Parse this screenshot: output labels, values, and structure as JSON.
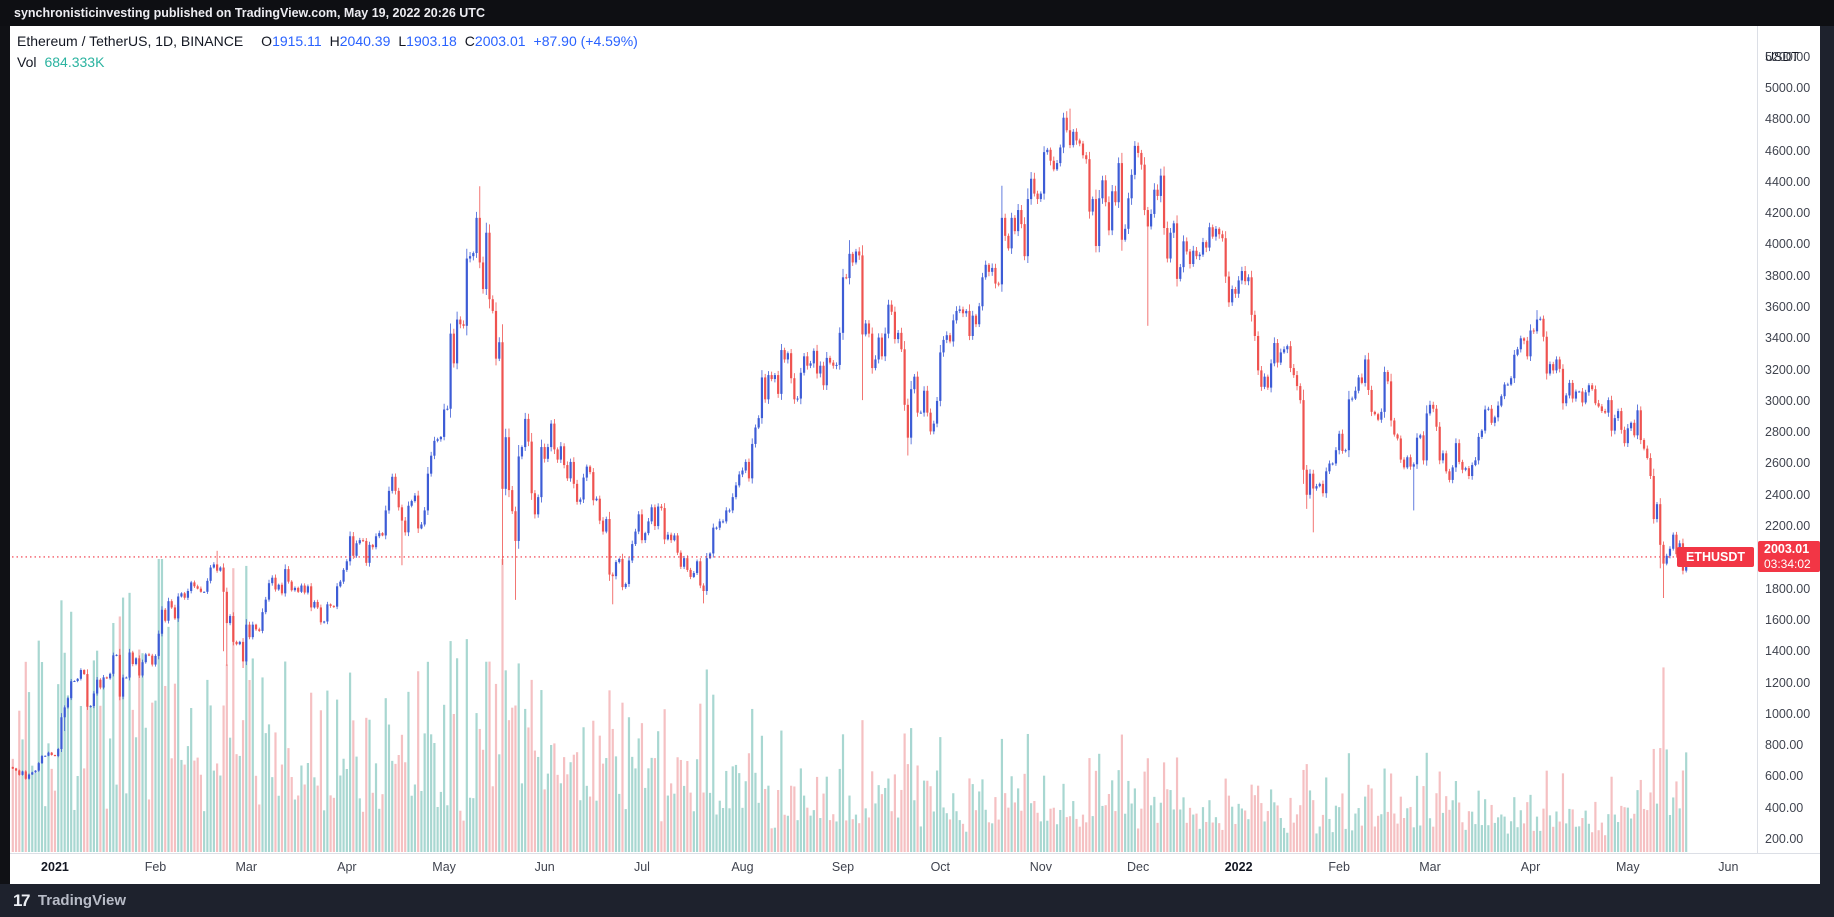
{
  "top_bar": {
    "text": "synchronisticinvesting published on TradingView.com, May 19, 2022 20:26 UTC"
  },
  "header": {
    "title": "Ethereum / TetherUS, 1D, BINANCE",
    "ohlc": [
      {
        "label": "O",
        "value": "1915.11"
      },
      {
        "label": "H",
        "value": "2040.39"
      },
      {
        "label": "L",
        "value": "1903.18"
      },
      {
        "label": "C",
        "value": "2003.01"
      }
    ],
    "change": "+87.90 (+4.59%)",
    "vol_label": "Vol",
    "vol_value": "684.333K"
  },
  "price_axis": {
    "currency": "USDT",
    "ticks": [
      "5200.00",
      "5000.00",
      "4800.00",
      "4600.00",
      "4400.00",
      "4200.00",
      "4000.00",
      "3800.00",
      "3600.00",
      "3400.00",
      "3200.00",
      "3000.00",
      "2800.00",
      "2600.00",
      "2400.00",
      "2200.00",
      "2000.00",
      "1800.00",
      "1600.00",
      "1400.00",
      "1200.00",
      "1000.00",
      "800.00",
      "600.00",
      "400.00",
      "200.00"
    ],
    "last_price": "2003.01",
    "countdown": "03:34:02"
  },
  "price_tag": {
    "text": "ETHUSDT"
  },
  "time_axis": {
    "labels": [
      {
        "text": "2021",
        "day": 13,
        "year": true
      },
      {
        "text": "Feb",
        "day": 44
      },
      {
        "text": "Mar",
        "day": 72
      },
      {
        "text": "Apr",
        "day": 103
      },
      {
        "text": "May",
        "day": 133
      },
      {
        "text": "Jun",
        "day": 164
      },
      {
        "text": "Jul",
        "day": 194
      },
      {
        "text": "Aug",
        "day": 225
      },
      {
        "text": "Sep",
        "day": 256
      },
      {
        "text": "Oct",
        "day": 286
      },
      {
        "text": "Nov",
        "day": 317
      },
      {
        "text": "Dec",
        "day": 347
      },
      {
        "text": "2022",
        "day": 378,
        "year": true
      },
      {
        "text": "Feb",
        "day": 409
      },
      {
        "text": "Mar",
        "day": 437
      },
      {
        "text": "Apr",
        "day": 468
      },
      {
        "text": "May",
        "day": 498
      },
      {
        "text": "Jun",
        "day": 529
      }
    ]
  },
  "footer": {
    "brand": "TradingView"
  },
  "colors": {
    "up": "#3d5cd6",
    "down": "#ef5350",
    "vol_up": "#a8d7d1",
    "vol_down": "#f5c0c2",
    "price_line": "#f23645",
    "label_red": "#f23645",
    "header_value_blue": "#2962ff",
    "vol_value_teal": "#2bb3a0",
    "axis_text": "#40444f",
    "text_dark": "#131722"
  },
  "chart_data": {
    "type": "candlestick",
    "symbol": "ETHUSDT",
    "exchange": "BINANCE",
    "interval": "1D",
    "title": "Ethereum / TetherUS, 1D, BINANCE",
    "start_date": "2020-12-19",
    "end_date": "2022-05-19",
    "y_axis": {
      "min": 200,
      "max": 5200,
      "step": 200,
      "currency": "USDT"
    },
    "grid": false,
    "legend_position": "top-left",
    "price_line": 2003.01,
    "last": {
      "open": 1915.11,
      "high": 2040.39,
      "low": 1903.18,
      "close": 2003.01,
      "change": "+87.90",
      "change_pct": "+4.59%",
      "volume": "684.333K"
    },
    "first_open": 660,
    "closes": [
      650,
      638,
      610,
      632,
      585,
      612,
      626,
      637,
      685,
      730,
      732,
      752,
      737,
      730,
      775,
      978,
      1041,
      1100,
      1208,
      1210,
      1224,
      1280,
      1254,
      1045,
      1050,
      1130,
      1218,
      1168,
      1233,
      1227,
      1256,
      1374,
      1377,
      1110,
      1232,
      1232,
      1392,
      1318,
      1355,
      1245,
      1330,
      1380,
      1372,
      1315,
      1370,
      1512,
      1665,
      1595,
      1720,
      1680,
      1610,
      1750,
      1770,
      1742,
      1785,
      1840,
      1815,
      1800,
      1780,
      1780,
      1850,
      1935,
      1955,
      1915,
      1935,
      1780,
      1580,
      1625,
      1460,
      1445,
      1460,
      1335,
      1570,
      1490,
      1570,
      1540,
      1530,
      1650,
      1730,
      1835,
      1870,
      1795,
      1825,
      1770,
      1925,
      1845,
      1790,
      1805,
      1780,
      1820,
      1775,
      1815,
      1680,
      1715,
      1680,
      1585,
      1590,
      1700,
      1690,
      1685,
      1815,
      1845,
      1920,
      1975,
      2135,
      2010,
      2090,
      2110,
      2105,
      1965,
      2080,
      2065,
      2135,
      2155,
      2140,
      2300,
      2425,
      2515,
      2425,
      2320,
      2235,
      2160,
      2330,
      2360,
      2395,
      2185,
      2210,
      2300,
      2535,
      2650,
      2745,
      2755,
      2770,
      2945,
      2950,
      3430,
      3240,
      3520,
      3490,
      3480,
      3910,
      3925,
      3945,
      4170,
      3885,
      3715,
      4075,
      3650,
      3575,
      3270,
      3375,
      2438,
      2768,
      2430,
      2295,
      2105,
      2645,
      2705,
      2885,
      2740,
      2410,
      2275,
      2385,
      2705,
      2630,
      2705,
      2855,
      2690,
      2625,
      2710,
      2590,
      2505,
      2610,
      2470,
      2355,
      2370,
      2510,
      2580,
      2545,
      2365,
      2375,
      2235,
      2165,
      2245,
      1890,
      1880,
      1970,
      1990,
      1810,
      1830,
      1980,
      2085,
      2165,
      2275,
      2110,
      2155,
      2230,
      2320,
      2200,
      2325,
      2315,
      2115,
      2145,
      2110,
      2140,
      2030,
      1940,
      1995,
      1920,
      1875,
      1900,
      1975,
      1820,
      1785,
      1995,
      2025,
      2190,
      2190,
      2230,
      2230,
      2300,
      2300,
      2385,
      2460,
      2530,
      2555,
      2610,
      2505,
      2725,
      2830,
      2890,
      3150,
      3010,
      3165,
      3140,
      3165,
      3045,
      3325,
      3265,
      3305,
      3145,
      3010,
      3015,
      3180,
      3285,
      3225,
      3240,
      3320,
      3175,
      3225,
      3100,
      3275,
      3245,
      3225,
      3230,
      3435,
      3790,
      3785,
      3940,
      3885,
      3955,
      3930,
      3425,
      3495,
      3430,
      3210,
      3265,
      3405,
      3285,
      3430,
      3615,
      3570,
      3395,
      3435,
      3330,
      2975,
      2765,
      3075,
      3155,
      2925,
      2925,
      3065,
      2925,
      2805,
      2855,
      3000,
      3310,
      3390,
      3420,
      3380,
      3515,
      3575,
      3585,
      3560,
      3575,
      3415,
      3545,
      3490,
      3605,
      3790,
      3870,
      3825,
      3850,
      3750,
      3745,
      4170,
      4055,
      3975,
      4170,
      4085,
      4220,
      4130,
      3925,
      4290,
      4420,
      4325,
      4290,
      4325,
      4590,
      4605,
      4535,
      4480,
      4520,
      4620,
      4810,
      4730,
      4635,
      4720,
      4665,
      4645,
      4570,
      4545,
      4210,
      4290,
      3990,
      4295,
      4410,
      4270,
      4090,
      4340,
      4270,
      4520,
      4030,
      4100,
      4295,
      4445,
      4630,
      4585,
      4510,
      4220,
      4115,
      4195,
      4350,
      4310,
      4440,
      4105,
      3910,
      4075,
      4135,
      3780,
      3855,
      4020,
      3955,
      3875,
      3960,
      3925,
      3935,
      4015,
      3980,
      4110,
      4050,
      4100,
      4065,
      4040,
      3795,
      3630,
      3715,
      3685,
      3770,
      3830,
      3765,
      3790,
      3550,
      3415,
      3195,
      3090,
      3155,
      3085,
      3240,
      3370,
      3245,
      3310,
      3330,
      3350,
      3210,
      3165,
      3095,
      3005,
      2560,
      2400,
      2535,
      2440,
      2455,
      2470,
      2410,
      2550,
      2600,
      2600,
      2685,
      2790,
      2680,
      2685,
      3010,
      3015,
      3065,
      3150,
      3115,
      3265,
      3070,
      2930,
      2915,
      2880,
      2930,
      3185,
      3125,
      2875,
      2785,
      2760,
      2625,
      2575,
      2640,
      2580,
      2595,
      2765,
      2780,
      2620,
      2920,
      2975,
      2950,
      2835,
      2620,
      2665,
      2550,
      2495,
      2575,
      2730,
      2610,
      2560,
      2570,
      2520,
      2590,
      2620,
      2770,
      2810,
      2945,
      2950,
      2860,
      2895,
      2970,
      3030,
      3105,
      3105,
      3145,
      3295,
      3330,
      3400,
      3385,
      3285,
      3450,
      3445,
      3520,
      3525,
      3410,
      3175,
      3235,
      3195,
      3265,
      3205,
      2985,
      3035,
      3115,
      3015,
      3060,
      3060,
      2990,
      3055,
      3100,
      3075,
      2985,
      2965,
      2935,
      2925,
      3005,
      2810,
      2890,
      2935,
      2815,
      2730,
      2825,
      2860,
      2780,
      2940,
      2750,
      2695,
      2635,
      2520,
      2245,
      2340,
      2080,
      1960,
      2010,
      2055,
      2145,
      2020,
      2090,
      1915,
      2003.01
    ],
    "high_anchors": {
      "63": 2042,
      "143": 4208,
      "144": 4372,
      "258": 4028,
      "305": 4375,
      "325": 4842,
      "326": 4868,
      "470": 3580
    },
    "low_anchors": {
      "16": 890,
      "65": 1400,
      "66": 1307,
      "71": 1293,
      "120": 1950,
      "151": 1952,
      "155": 1728,
      "184": 1865,
      "185": 1700,
      "213": 1706,
      "262": 3005,
      "276": 2651,
      "350": 3480,
      "398": 2470,
      "399": 2310,
      "401": 2160,
      "432": 2300,
      "508": 1930,
      "509": 1740
    },
    "vol_anchors": {
      "16": 0.68,
      "23": 0.52,
      "24": 0.5,
      "65": 0.5,
      "66": 0.64,
      "71": 0.45,
      "120": 0.4,
      "144": 0.42,
      "151": 1.0,
      "152": 0.62,
      "153": 0.45,
      "155": 0.5,
      "185": 0.42,
      "262": 0.45,
      "276": 0.3,
      "350": 0.32,
      "398": 0.28,
      "399": 0.3,
      "509": 0.63,
      "510": 0.35,
      "516": 0.34
    }
  }
}
